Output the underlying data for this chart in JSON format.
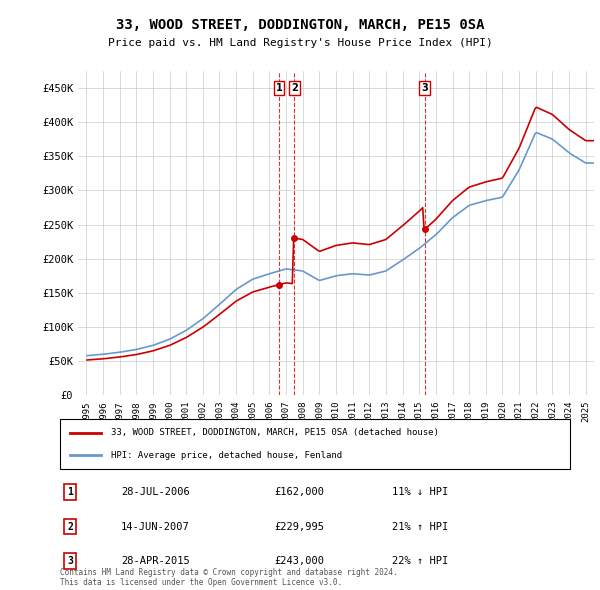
{
  "title": "33, WOOD STREET, DODDINGTON, MARCH, PE15 0SA",
  "subtitle": "Price paid vs. HM Land Registry's House Price Index (HPI)",
  "legend_line1": "33, WOOD STREET, DODDINGTON, MARCH, PE15 0SA (detached house)",
  "legend_line2": "HPI: Average price, detached house, Fenland",
  "footer1": "Contains HM Land Registry data © Crown copyright and database right 2024.",
  "footer2": "This data is licensed under the Open Government Licence v3.0.",
  "table": [
    {
      "num": "1",
      "date": "28-JUL-2006",
      "price": "£162,000",
      "hpi": "11% ↓ HPI"
    },
    {
      "num": "2",
      "date": "14-JUN-2007",
      "price": "£229,995",
      "hpi": "21% ↑ HPI"
    },
    {
      "num": "3",
      "date": "28-APR-2015",
      "price": "£243,000",
      "hpi": "22% ↑ HPI"
    }
  ],
  "red_color": "#cc0000",
  "blue_color": "#6699cc",
  "marker1_x": 2006.57,
  "marker1_y": 162000,
  "marker2_x": 2007.46,
  "marker2_y": 229995,
  "marker3_x": 2015.33,
  "marker3_y": 243000,
  "ylim": [
    0,
    475000
  ],
  "xlim_start": 1994.5,
  "xlim_end": 2025.5
}
